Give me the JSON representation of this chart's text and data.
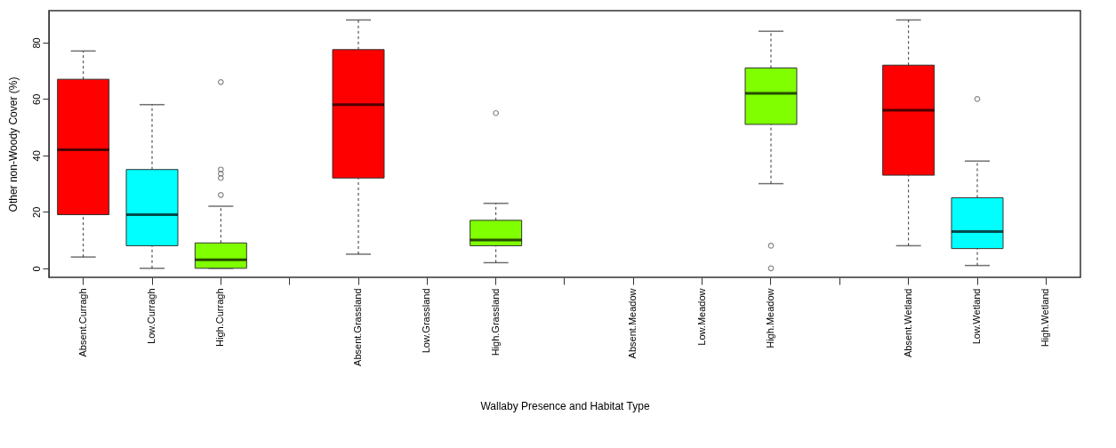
{
  "chart_data": {
    "type": "box",
    "xlabel": "Wallaby Presence and Habitat Type",
    "ylabel": "Other non-Woody Cover (%)",
    "categories": [
      "Absent.Curragh",
      "Low.Curragh",
      "High.Curragh",
      null,
      "Absent.Grassland",
      "Low.Grassland",
      "High.Grassland",
      null,
      "Absent.Meadow",
      "Low.Meadow",
      "High.Meadow",
      null,
      "Absent.Wetland",
      "Low.Wetland",
      "High.Wetland"
    ],
    "colors": [
      "#ff0000",
      "#00ffff",
      "#7fff00",
      null,
      "#ff0000",
      null,
      "#7fff00",
      null,
      null,
      null,
      "#7fff00",
      null,
      "#ff0000",
      "#00ffff",
      null
    ],
    "boxes": [
      {
        "low": 4,
        "q1": 19,
        "median": 42,
        "q3": 67,
        "high": 77
      },
      {
        "low": 0,
        "q1": 8,
        "median": 19,
        "q3": 35,
        "high": 58
      },
      {
        "low": 0,
        "q1": 0,
        "median": 3,
        "q3": 9,
        "high": 22,
        "outliers": [
          66,
          35,
          33.5,
          32,
          26
        ]
      },
      null,
      {
        "low": 5,
        "q1": 32,
        "median": 58,
        "q3": 77.5,
        "high": 88
      },
      null,
      {
        "low": 2,
        "q1": 8,
        "median": 10,
        "q3": 17,
        "high": 23,
        "outliers": [
          55
        ]
      },
      null,
      null,
      null,
      {
        "low": 30,
        "q1": 51,
        "median": 62,
        "q3": 71,
        "high": 84,
        "outliers": [
          8,
          0
        ]
      },
      null,
      {
        "low": 8,
        "q1": 33,
        "median": 56,
        "q3": 72,
        "high": 88
      },
      {
        "low": 1,
        "q1": 7,
        "median": 13,
        "q3": 25,
        "high": 38,
        "outliers": [
          60
        ]
      },
      null
    ],
    "ylim": [
      -3.2,
      91.3
    ],
    "yticks": [
      0,
      20,
      40,
      60,
      80
    ]
  }
}
